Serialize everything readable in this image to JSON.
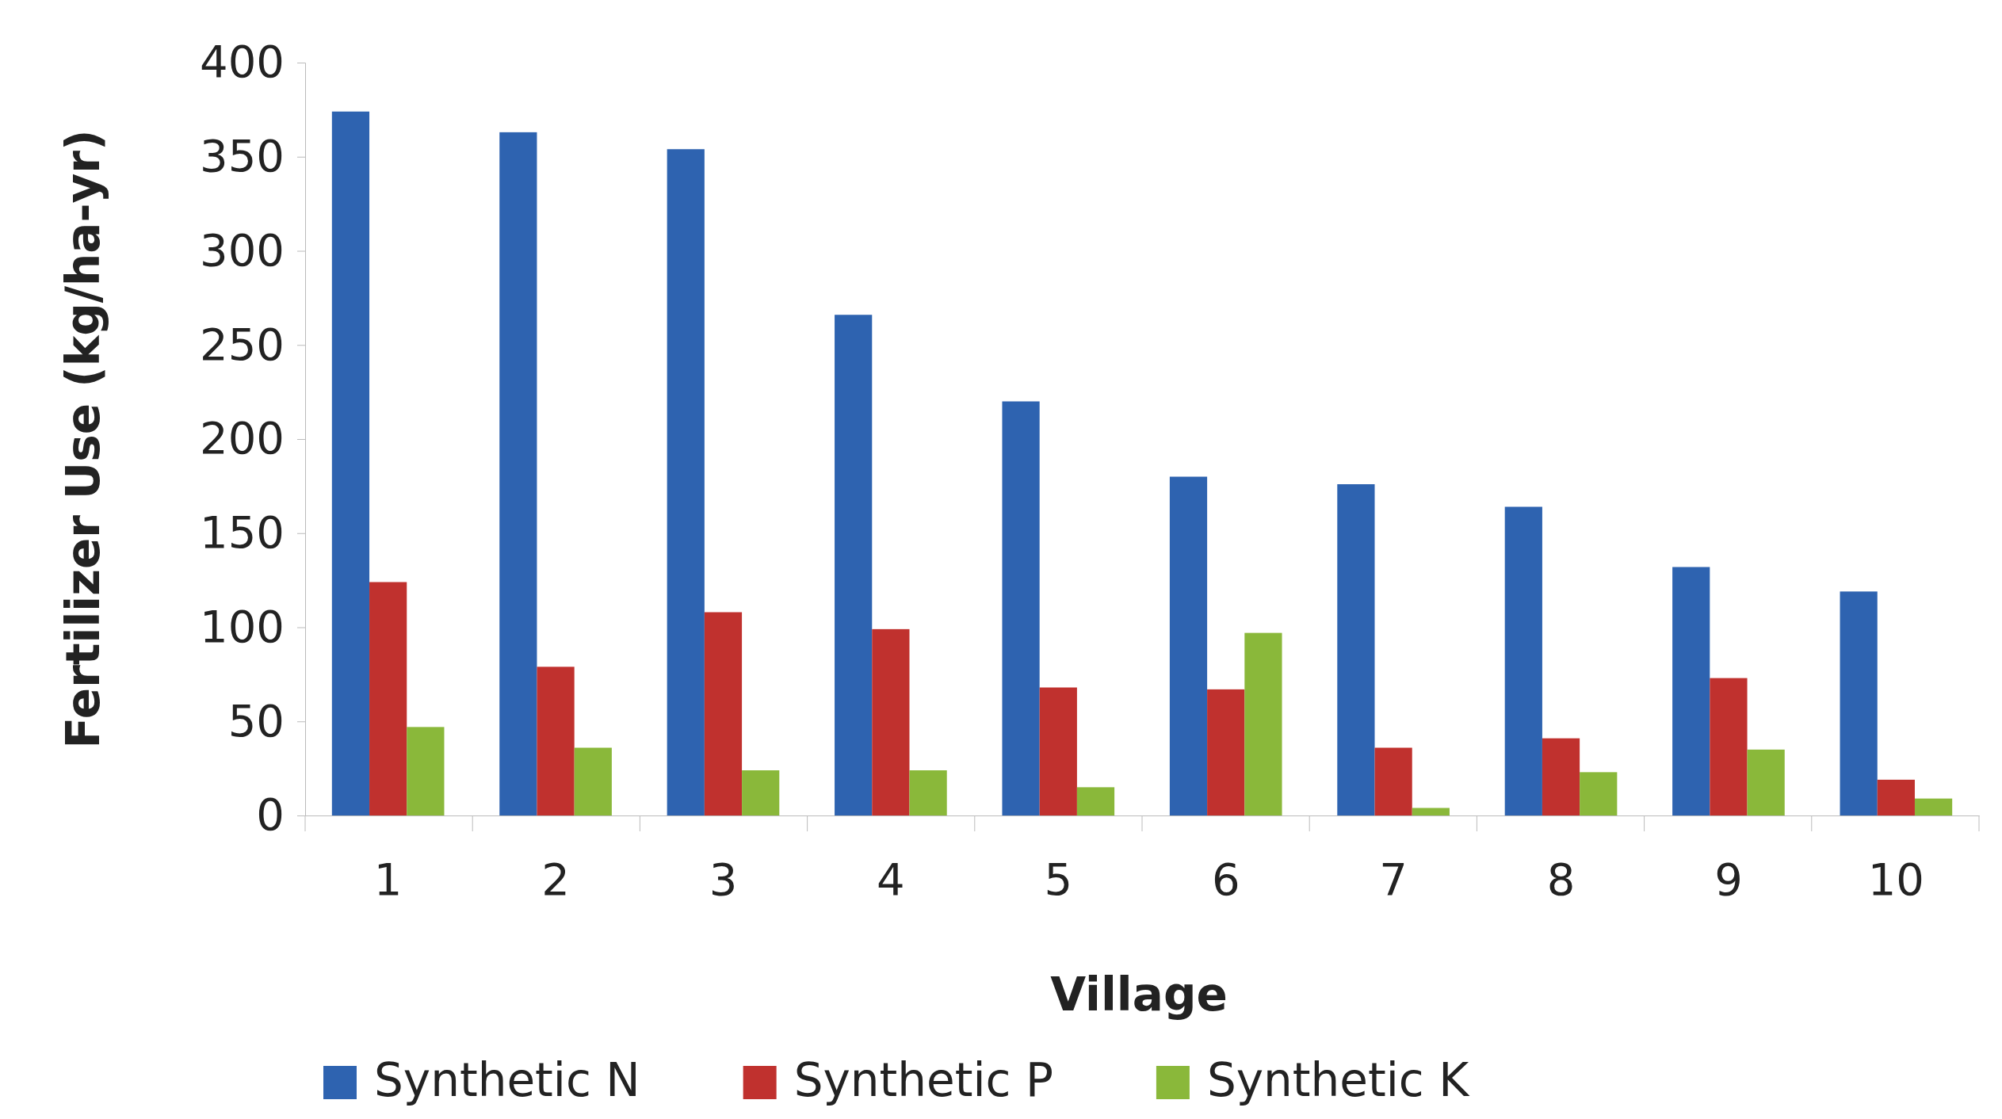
{
  "chart_data": {
    "type": "bar",
    "xlabel": "Village",
    "ylabel": "Fertilizer Use (kg/ha-yr)",
    "categories": [
      "1",
      "2",
      "3",
      "4",
      "5",
      "6",
      "7",
      "8",
      "9",
      "10"
    ],
    "series": [
      {
        "name": "Synthetic N",
        "color": "#2e63b0",
        "values": [
          374,
          363,
          354,
          266,
          220,
          180,
          176,
          164,
          132,
          119
        ]
      },
      {
        "name": "Synthetic P",
        "color": "#c0312e",
        "values": [
          124,
          79,
          108,
          99,
          68,
          67,
          36,
          41,
          73,
          19
        ]
      },
      {
        "name": "Synthetic K",
        "color": "#8ab83a",
        "values": [
          47,
          36,
          24,
          24,
          15,
          97,
          4,
          23,
          35,
          9
        ]
      }
    ],
    "ylim": [
      0,
      400
    ],
    "yticks": [
      0,
      50,
      100,
      150,
      200,
      250,
      300,
      350,
      400
    ],
    "grid": false,
    "legend": "bottom"
  }
}
